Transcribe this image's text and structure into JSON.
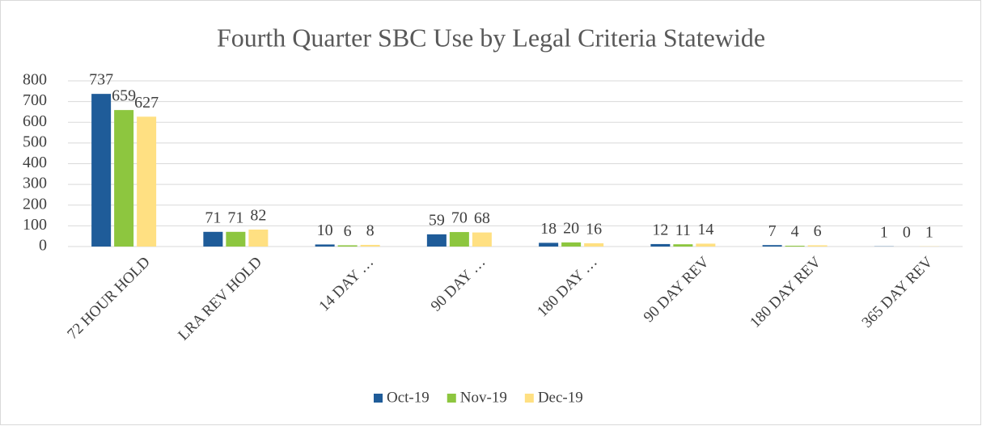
{
  "chart_data": {
    "type": "bar",
    "title": "Fourth Quarter SBC Use by Legal Criteria Statewide",
    "categories": [
      "72 HOUR HOLD",
      "LRA REV HOLD",
      "14 DAY …",
      "90 DAY …",
      "180 DAY …",
      "90 DAY REV",
      "180 DAY REV",
      "365 DAY REV"
    ],
    "series": [
      {
        "name": "Oct-19",
        "color": "#1f5c99",
        "values": [
          737,
          71,
          10,
          59,
          18,
          12,
          7,
          1
        ]
      },
      {
        "name": "Nov-19",
        "color": "#8dc63f",
        "values": [
          659,
          71,
          6,
          70,
          20,
          11,
          4,
          0
        ]
      },
      {
        "name": "Dec-19",
        "color": "#ffe082",
        "values": [
          627,
          82,
          8,
          68,
          16,
          14,
          6,
          1
        ]
      }
    ],
    "ylim": [
      0,
      800
    ],
    "yticks": [
      0,
      100,
      200,
      300,
      400,
      500,
      600,
      700,
      800
    ],
    "grid": true,
    "legend": "bottom"
  }
}
